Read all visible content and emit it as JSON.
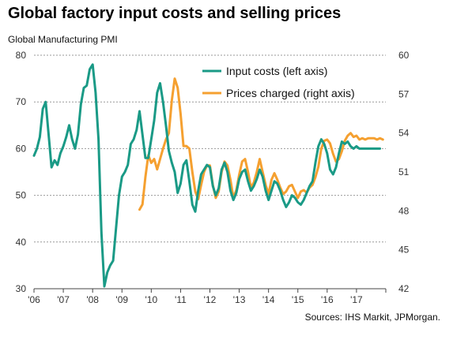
{
  "chart_data": {
    "type": "line",
    "title": "Global factory input costs and selling prices",
    "ylabel": "Global Manufacturing PMI",
    "source": "Sources: IHS Markit, JPMorgan.",
    "x_ticks": [
      "'06",
      "'07",
      "'08",
      "'09",
      "'10",
      "'11",
      "'12",
      "'13",
      "'14",
      "'15",
      "'16",
      "'17"
    ],
    "x_range": [
      2006.0,
      2018.0
    ],
    "ylim_left": [
      30,
      80
    ],
    "yticks_left": [
      "30",
      "40",
      "50",
      "60",
      "70",
      "80"
    ],
    "ylim_right": [
      42,
      60
    ],
    "yticks_right": [
      "42",
      "45",
      "48",
      "51",
      "54",
      "57",
      "60"
    ],
    "grid": "horizontal dotted",
    "legend": "top-right",
    "colors": {
      "input": "#1a9a86",
      "prices": "#f5a030",
      "grid": "#9a9a9a",
      "axis": "#444444"
    },
    "series": [
      {
        "name": "Input costs (left axis)",
        "axis": "left",
        "x": [
          2006.0,
          2006.1,
          2006.2,
          2006.3,
          2006.4,
          2006.5,
          2006.6,
          2006.7,
          2006.8,
          2006.9,
          2007.0,
          2007.1,
          2007.2,
          2007.3,
          2007.4,
          2007.5,
          2007.6,
          2007.7,
          2007.8,
          2007.9,
          2008.0,
          2008.1,
          2008.2,
          2008.3,
          2008.4,
          2008.5,
          2008.6,
          2008.7,
          2008.8,
          2008.9,
          2009.0,
          2009.1,
          2009.2,
          2009.3,
          2009.4,
          2009.5,
          2009.6,
          2009.7,
          2009.8,
          2009.9,
          2010.0,
          2010.1,
          2010.2,
          2010.3,
          2010.4,
          2010.5,
          2010.6,
          2010.7,
          2010.8,
          2010.9,
          2011.0,
          2011.1,
          2011.2,
          2011.3,
          2011.4,
          2011.5,
          2011.6,
          2011.7,
          2011.8,
          2011.9,
          2012.0,
          2012.1,
          2012.2,
          2012.3,
          2012.4,
          2012.5,
          2012.6,
          2012.7,
          2012.8,
          2012.9,
          2013.0,
          2013.1,
          2013.2,
          2013.3,
          2013.4,
          2013.5,
          2013.6,
          2013.7,
          2013.8,
          2013.9,
          2014.0,
          2014.1,
          2014.2,
          2014.3,
          2014.4,
          2014.5,
          2014.6,
          2014.7,
          2014.8,
          2014.9,
          2015.0,
          2015.1,
          2015.2,
          2015.3,
          2015.4,
          2015.5,
          2015.6,
          2015.7,
          2015.8,
          2015.9,
          2016.0,
          2016.1,
          2016.2,
          2016.3,
          2016.4,
          2016.5,
          2016.6,
          2016.7,
          2016.8,
          2016.9,
          2017.0,
          2017.1,
          2017.2,
          2017.3,
          2017.4,
          2017.5,
          2017.6,
          2017.7,
          2017.8
        ],
        "values": [
          58.5,
          60.0,
          62.5,
          68.5,
          70.0,
          63.0,
          56.0,
          57.5,
          56.5,
          59.0,
          60.5,
          62.5,
          65.0,
          62.0,
          60.0,
          63.0,
          69.5,
          73.0,
          73.5,
          77.0,
          78.0,
          72.0,
          62.0,
          42.0,
          30.5,
          33.5,
          35.0,
          36.0,
          43.0,
          50.0,
          54.0,
          55.0,
          56.5,
          61.0,
          62.0,
          64.0,
          68.0,
          63.0,
          58.0,
          58.0,
          62.0,
          66.0,
          72.0,
          74.0,
          70.0,
          65.0,
          59.5,
          57.0,
          55.0,
          50.5,
          52.5,
          56.5,
          57.5,
          53.0,
          48.0,
          46.5,
          51.0,
          54.5,
          55.5,
          56.5,
          56.0,
          52.0,
          50.0,
          51.5,
          55.5,
          57.0,
          55.0,
          51.0,
          49.0,
          50.5,
          53.5,
          55.0,
          55.5,
          53.0,
          51.0,
          52.0,
          53.5,
          55.5,
          54.0,
          51.0,
          49.0,
          51.0,
          53.0,
          52.5,
          51.0,
          49.0,
          47.5,
          48.5,
          50.0,
          49.5,
          48.5,
          48.0,
          49.0,
          50.5,
          52.0,
          53.0,
          57.0,
          60.5,
          62.0,
          61.0,
          59.0,
          55.5,
          54.5,
          56.0,
          59.0,
          61.5,
          61.0,
          61.5,
          60.5,
          60.0,
          60.5,
          60.0,
          60.0,
          60.0,
          60.0,
          60.0,
          60.0,
          60.0,
          60.0
        ]
      },
      {
        "name": "Prices charged (right axis)",
        "axis": "right",
        "x": [
          2009.6,
          2009.7,
          2009.8,
          2009.9,
          2010.0,
          2010.1,
          2010.2,
          2010.3,
          2010.4,
          2010.5,
          2010.6,
          2010.7,
          2010.8,
          2010.9,
          2011.0,
          2011.1,
          2011.2,
          2011.3,
          2011.4,
          2011.5,
          2011.6,
          2011.7,
          2011.8,
          2011.9,
          2012.0,
          2012.1,
          2012.2,
          2012.3,
          2012.4,
          2012.5,
          2012.6,
          2012.7,
          2012.8,
          2012.9,
          2013.0,
          2013.1,
          2013.2,
          2013.3,
          2013.4,
          2013.5,
          2013.6,
          2013.7,
          2013.8,
          2013.9,
          2014.0,
          2014.1,
          2014.2,
          2014.3,
          2014.4,
          2014.5,
          2014.6,
          2014.7,
          2014.8,
          2014.9,
          2015.0,
          2015.1,
          2015.2,
          2015.3,
          2015.4,
          2015.5,
          2015.6,
          2015.7,
          2015.8,
          2015.9,
          2016.0,
          2016.1,
          2016.2,
          2016.3,
          2016.4,
          2016.5,
          2016.6,
          2016.7,
          2016.8,
          2016.9,
          2017.0,
          2017.1,
          2017.2,
          2017.3,
          2017.4,
          2017.5,
          2017.6,
          2017.7,
          2017.8,
          2017.9
        ],
        "values": [
          48.1,
          48.5,
          50.6,
          52.3,
          51.7,
          52.0,
          51.2,
          52.0,
          52.8,
          53.5,
          54.0,
          56.5,
          58.2,
          57.5,
          55.5,
          53.0,
          53.0,
          52.8,
          51.0,
          49.5,
          48.9,
          50.0,
          51.0,
          51.5,
          51.5,
          50.0,
          49.0,
          49.5,
          51.0,
          51.8,
          51.5,
          50.4,
          49.0,
          49.6,
          50.8,
          51.8,
          52.0,
          51.0,
          49.8,
          50.2,
          51.0,
          52.0,
          51.0,
          50.0,
          49.3,
          50.4,
          50.9,
          50.4,
          49.8,
          49.3,
          49.5,
          49.9,
          50.0,
          49.5,
          49.0,
          49.5,
          49.6,
          49.4,
          49.8,
          50.0,
          50.6,
          51.4,
          52.8,
          53.4,
          53.5,
          53.2,
          52.4,
          51.8,
          52.0,
          52.6,
          53.4,
          53.8,
          54.0,
          53.7,
          53.8,
          53.5,
          53.6,
          53.5,
          53.6,
          53.6,
          53.6,
          53.5,
          53.6,
          53.5
        ]
      }
    ]
  }
}
